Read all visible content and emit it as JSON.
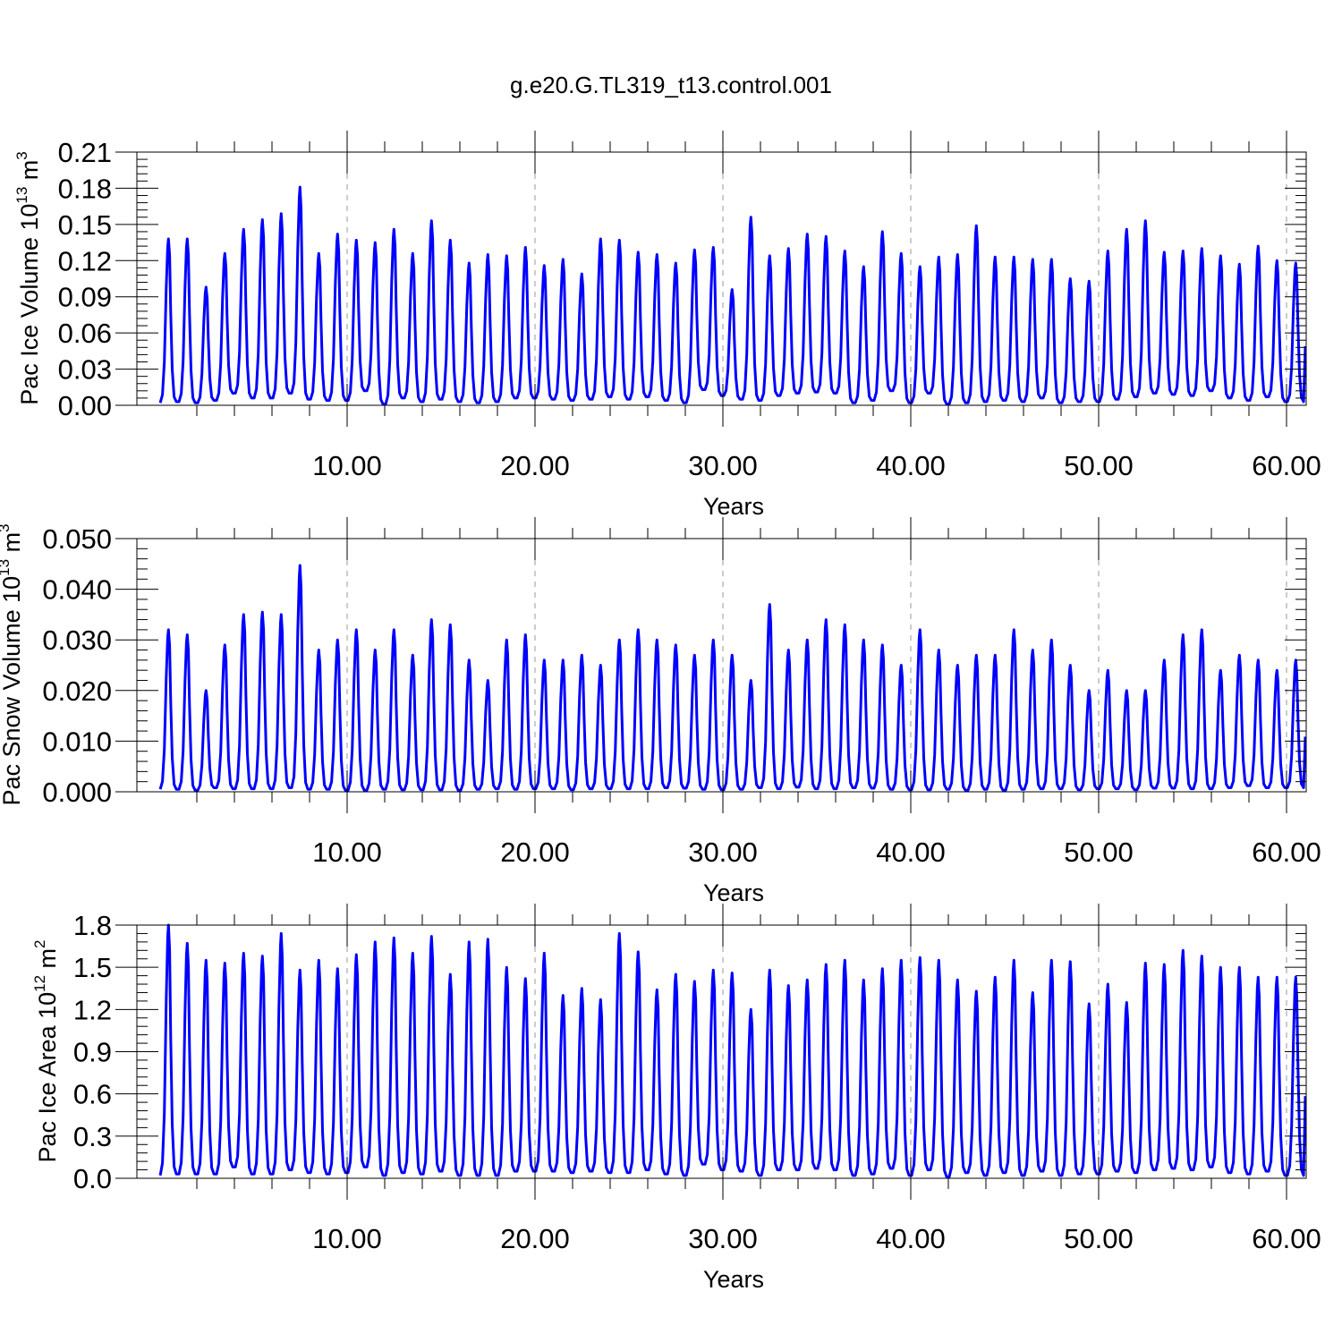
{
  "title": "g.e20.G.TL319_t13.control.001",
  "chart_data": [
    {
      "type": "line",
      "ylabel": "Pac Ice Volume 10",
      "ylabel_exp": "13",
      "ylabel_unit": " m",
      "ylabel_unit_exp": "3",
      "xlabel": "Years",
      "xlim": [
        0,
        61
      ],
      "ylim": [
        0,
        0.21
      ],
      "x_ticks": [
        10,
        20,
        30,
        40,
        50,
        60
      ],
      "x_tick_labels": [
        "10.00",
        "20.00",
        "30.00",
        "40.00",
        "50.00",
        "60.00"
      ],
      "y_ticks": [
        0,
        0.03,
        0.06,
        0.09,
        0.12,
        0.15,
        0.18,
        0.21
      ],
      "y_tick_labels": [
        "0.00",
        "0.03",
        "0.06",
        "0.09",
        "0.12",
        "0.15",
        "0.18",
        "0.21"
      ],
      "grid": "x-dashed",
      "line_color": "#0000ff",
      "series": [
        {
          "x": [
            0,
            1,
            2,
            3,
            4,
            5,
            6,
            7,
            8,
            9,
            10,
            11,
            12,
            13,
            14,
            15,
            16,
            17,
            18,
            19,
            20,
            21,
            22,
            23,
            24,
            25,
            26,
            27,
            28,
            29,
            30,
            31,
            32,
            33,
            34,
            35,
            36,
            37,
            38,
            39,
            40,
            41,
            42,
            43,
            44,
            45,
            46,
            47,
            48,
            49,
            50,
            51,
            52,
            53,
            54,
            55,
            56,
            57,
            58,
            59,
            60
          ],
          "peaks": [
            0.138,
            0.138,
            0.098,
            0.126,
            0.146,
            0.154,
            0.159,
            0.181,
            0.126,
            0.142,
            0.137,
            0.135,
            0.146,
            0.126,
            0.153,
            0.137,
            0.118,
            0.125,
            0.124,
            0.131,
            0.116,
            0.121,
            0.109,
            0.138,
            0.137,
            0.127,
            0.125,
            0.118,
            0.129,
            0.131,
            0.096,
            0.156,
            0.124,
            0.13,
            0.142,
            0.14,
            0.128,
            0.115,
            0.144,
            0.126,
            0.115,
            0.123,
            0.125,
            0.149,
            0.123,
            0.123,
            0.121,
            0.121,
            0.105,
            0.103,
            0.128,
            0.146,
            0.153,
            0.127,
            0.128,
            0.13,
            0.124,
            0.117,
            0.132,
            0.12,
            0.118
          ],
          "troughs": [
            0.002,
            0.003,
            0.002,
            0.004,
            0.01,
            0.006,
            0.006,
            0.01,
            0.005,
            0.004,
            0.004,
            0.012,
            0.001,
            0.006,
            0.003,
            0.005,
            0.003,
            0.002,
            0.003,
            0.006,
            0.006,
            0.005,
            0.004,
            0.005,
            0.007,
            0.005,
            0.007,
            0.004,
            0.002,
            0.013,
            0.008,
            0.005,
            0.004,
            0.008,
            0.01,
            0.011,
            0.01,
            0.002,
            0.004,
            0.012,
            0.002,
            0.01,
            0.001,
            0.002,
            0.003,
            0.004,
            0.003,
            0.006,
            0.002,
            0.003,
            0.003,
            0.005,
            0.007,
            0.01,
            0.009,
            0.008,
            0.012,
            0.006,
            0.004,
            0.007,
            0.003
          ]
        }
      ]
    },
    {
      "type": "line",
      "ylabel": "Pac Snow Volume 10",
      "ylabel_exp": "13",
      "ylabel_unit": " m",
      "ylabel_unit_exp": "3",
      "xlabel": "Years",
      "xlim": [
        0,
        61
      ],
      "ylim": [
        0,
        0.05
      ],
      "x_ticks": [
        10,
        20,
        30,
        40,
        50,
        60
      ],
      "x_tick_labels": [
        "10.00",
        "20.00",
        "30.00",
        "40.00",
        "50.00",
        "60.00"
      ],
      "y_ticks": [
        0,
        0.01,
        0.02,
        0.03,
        0.04,
        0.05
      ],
      "y_tick_labels": [
        "0.000",
        "0.010",
        "0.020",
        "0.030",
        "0.040",
        "0.050"
      ],
      "grid": "x-dashed",
      "line_color": "#0000ff",
      "series": [
        {
          "x": [
            0,
            1,
            2,
            3,
            4,
            5,
            6,
            7,
            8,
            9,
            10,
            11,
            12,
            13,
            14,
            15,
            16,
            17,
            18,
            19,
            20,
            21,
            22,
            23,
            24,
            25,
            26,
            27,
            28,
            29,
            30,
            31,
            32,
            33,
            34,
            35,
            36,
            37,
            38,
            39,
            40,
            41,
            42,
            43,
            44,
            45,
            46,
            47,
            48,
            49,
            50,
            51,
            52,
            53,
            54,
            55,
            56,
            57,
            58,
            59,
            60
          ],
          "peaks": [
            0.032,
            0.031,
            0.02,
            0.029,
            0.035,
            0.0355,
            0.035,
            0.0447,
            0.028,
            0.03,
            0.032,
            0.028,
            0.032,
            0.027,
            0.034,
            0.033,
            0.026,
            0.022,
            0.03,
            0.031,
            0.026,
            0.026,
            0.027,
            0.025,
            0.03,
            0.032,
            0.03,
            0.029,
            0.027,
            0.03,
            0.027,
            0.022,
            0.037,
            0.028,
            0.03,
            0.034,
            0.033,
            0.03,
            0.029,
            0.025,
            0.032,
            0.028,
            0.025,
            0.027,
            0.027,
            0.032,
            0.028,
            0.03,
            0.025,
            0.02,
            0.024,
            0.02,
            0.02,
            0.026,
            0.031,
            0.032,
            0.024,
            0.027,
            0.026,
            0.024,
            0.026
          ],
          "troughs": [
            0.0005,
            0.0005,
            0.0003,
            0.0008,
            0.0006,
            0.0006,
            0.0006,
            0.0008,
            0.0005,
            0.0005,
            0.0003,
            0.0003,
            0.0005,
            0.0004,
            0.0004,
            0.0004,
            0.0003,
            0.0005,
            0.0006,
            0.0005,
            0.0006,
            0.0006,
            0.0004,
            0.0006,
            0.0006,
            0.0006,
            0.0006,
            0.0008,
            0.0007,
            0.0005,
            0.0004,
            0.0005,
            0.0008,
            0.0006,
            0.0009,
            0.0006,
            0.0006,
            0.0008,
            0.0007,
            0.0005,
            0.0004,
            0.0004,
            0.0005,
            0.0003,
            0.0005,
            0.0003,
            0.0005,
            0.0006,
            0.0006,
            0.0004,
            0.0006,
            0.0006,
            0.0004,
            0.0007,
            0.0007,
            0.0006,
            0.0006,
            0.0008,
            0.0012,
            0.0008,
            0.0008
          ]
        }
      ]
    },
    {
      "type": "line",
      "ylabel": "Pac Ice Area 10",
      "ylabel_exp": "12",
      "ylabel_unit": " m",
      "ylabel_unit_exp": "2",
      "xlabel": "Years",
      "xlim": [
        0,
        61
      ],
      "ylim": [
        0,
        1.8
      ],
      "x_ticks": [
        10,
        20,
        30,
        40,
        50,
        60
      ],
      "x_tick_labels": [
        "10.00",
        "20.00",
        "30.00",
        "40.00",
        "50.00",
        "60.00"
      ],
      "y_ticks": [
        0,
        0.3,
        0.6,
        0.9,
        1.2,
        1.5,
        1.8
      ],
      "y_tick_labels": [
        "0.0",
        "0.3",
        "0.6",
        "0.9",
        "1.2",
        "1.5",
        "1.8"
      ],
      "grid": "x-dashed",
      "line_color": "#0000ff",
      "series": [
        {
          "x": [
            0,
            1,
            2,
            3,
            4,
            5,
            6,
            7,
            8,
            9,
            10,
            11,
            12,
            13,
            14,
            15,
            16,
            17,
            18,
            19,
            20,
            21,
            22,
            23,
            24,
            25,
            26,
            27,
            28,
            29,
            30,
            31,
            32,
            33,
            34,
            35,
            36,
            37,
            38,
            39,
            40,
            41,
            42,
            43,
            44,
            45,
            46,
            47,
            48,
            49,
            50,
            51,
            52,
            53,
            54,
            55,
            56,
            57,
            58,
            59,
            60
          ],
          "peaks": [
            1.8,
            1.67,
            1.55,
            1.53,
            1.6,
            1.58,
            1.74,
            1.48,
            1.55,
            1.49,
            1.59,
            1.68,
            1.71,
            1.6,
            1.72,
            1.45,
            1.68,
            1.7,
            1.5,
            1.42,
            1.6,
            1.3,
            1.35,
            1.27,
            1.74,
            1.61,
            1.34,
            1.45,
            1.4,
            1.48,
            1.46,
            1.2,
            1.48,
            1.37,
            1.41,
            1.52,
            1.55,
            1.41,
            1.49,
            1.55,
            1.57,
            1.55,
            1.41,
            1.33,
            1.43,
            1.55,
            1.32,
            1.55,
            1.54,
            1.24,
            1.38,
            1.25,
            1.53,
            1.52,
            1.62,
            1.58,
            1.5,
            1.5,
            1.43,
            1.43,
            1.43
          ],
          "troughs": [
            0.02,
            0.03,
            0.03,
            0.03,
            0.08,
            0.03,
            0.03,
            0.06,
            0.04,
            0.03,
            0.04,
            0.08,
            0.02,
            0.04,
            0.03,
            0.05,
            0.02,
            0.02,
            0.02,
            0.05,
            0.05,
            0.05,
            0.04,
            0.05,
            0.04,
            0.04,
            0.06,
            0.03,
            0.02,
            0.1,
            0.06,
            0.05,
            0.02,
            0.06,
            0.06,
            0.07,
            0.06,
            0.02,
            0.03,
            0.07,
            0.02,
            0.06,
            0.01,
            0.04,
            0.02,
            0.04,
            0.02,
            0.05,
            0.02,
            0.03,
            0.03,
            0.05,
            0.04,
            0.06,
            0.07,
            0.06,
            0.08,
            0.04,
            0.03,
            0.05,
            0.02
          ]
        }
      ]
    }
  ]
}
